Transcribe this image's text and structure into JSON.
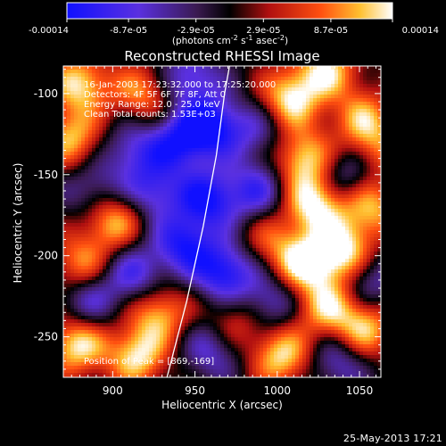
{
  "colorbar": {
    "ticks": [
      "-0.00014",
      "-8.7e-05",
      "-2.9e-05",
      "2.9e-05",
      "8.7e-05",
      "0.00014"
    ],
    "tick_values": [
      -0.00014,
      -8.7e-05,
      -2.9e-05,
      2.9e-05,
      8.7e-05,
      0.00014
    ],
    "range": [
      -0.00014,
      0.00014
    ],
    "unit_label": "(photons cm",
    "unit_sup1": "-2",
    "unit_mid": " s",
    "unit_sup2": "-1",
    "unit_end": " asec",
    "unit_sup3": "-2",
    "unit_close": ")"
  },
  "chart_data": {
    "type": "heatmap",
    "title": "Reconstructed RHESSI Image",
    "xlabel": "Heliocentric X (arcsec)",
    "ylabel": "Heliocentric Y (arcsec)",
    "xlim": [
      870,
      1063
    ],
    "ylim": [
      -275,
      -83
    ],
    "xticks": [
      900,
      950,
      1000,
      1050
    ],
    "yticks": [
      -100,
      -150,
      -200,
      -250
    ],
    "xtick_labels": [
      "900",
      "950",
      "1000",
      "1050"
    ],
    "ytick_labels": [
      "-100",
      "-150",
      "-200",
      "-250"
    ],
    "colormap": "blue-purple-black-red-orange-yellow-white",
    "annotations": [
      "16-Jan-2003 17:23:32.000 to 17:25:20.000",
      "Detectors: 4F 5F 6F 7F 8F, Att 0",
      "Energy Range: 12.0 - 25.0 keV",
      "Clean    Total counts: 1.53E+03"
    ],
    "peak_text": "Position of Peak = [869,-169]",
    "limb_points": [
      [
        933,
        -275
      ],
      [
        945,
        -228
      ],
      [
        955,
        -182
      ],
      [
        963,
        -138
      ],
      [
        968,
        -100
      ],
      [
        971,
        -83
      ]
    ],
    "features": [
      {
        "x": 880,
        "y": -94,
        "v": 0.8
      },
      {
        "x": 918,
        "y": -100,
        "v": 0.6
      },
      {
        "x": 947,
        "y": -90,
        "v": -0.6
      },
      {
        "x": 1008,
        "y": -103,
        "v": 0.85
      },
      {
        "x": 1030,
        "y": -85,
        "v": 0.75
      },
      {
        "x": 960,
        "y": -120,
        "v": -0.85
      },
      {
        "x": 940,
        "y": -130,
        "v": -0.7
      },
      {
        "x": 912,
        "y": -135,
        "v": -0.5
      },
      {
        "x": 988,
        "y": -123,
        "v": -0.4
      },
      {
        "x": 1052,
        "y": -115,
        "v": 0.6
      },
      {
        "x": 875,
        "y": -128,
        "v": 0.7
      },
      {
        "x": 1016,
        "y": -140,
        "v": 0.8
      },
      {
        "x": 1043,
        "y": -150,
        "v": -0.55
      },
      {
        "x": 988,
        "y": -160,
        "v": -0.6
      },
      {
        "x": 958,
        "y": -165,
        "v": -0.8
      },
      {
        "x": 925,
        "y": -160,
        "v": -0.6
      },
      {
        "x": 888,
        "y": -160,
        "v": -0.45
      },
      {
        "x": 1023,
        "y": -168,
        "v": 0.9
      },
      {
        "x": 1057,
        "y": -170,
        "v": 0.7
      },
      {
        "x": 900,
        "y": -178,
        "v": 0.75
      },
      {
        "x": 943,
        "y": -193,
        "v": -0.75
      },
      {
        "x": 968,
        "y": -210,
        "v": -0.85
      },
      {
        "x": 995,
        "y": -190,
        "v": 0.4
      },
      {
        "x": 1016,
        "y": -205,
        "v": 0.85
      },
      {
        "x": 1040,
        "y": -198,
        "v": 0.9
      },
      {
        "x": 1056,
        "y": -215,
        "v": -0.5
      },
      {
        "x": 880,
        "y": -205,
        "v": 0.6
      },
      {
        "x": 913,
        "y": -212,
        "v": -0.6
      },
      {
        "x": 885,
        "y": -228,
        "v": -0.5
      },
      {
        "x": 928,
        "y": -235,
        "v": 0.7
      },
      {
        "x": 995,
        "y": -228,
        "v": -0.55
      },
      {
        "x": 1030,
        "y": -232,
        "v": 0.7
      },
      {
        "x": 1053,
        "y": -245,
        "v": 0.75
      },
      {
        "x": 960,
        "y": -258,
        "v": -0.5
      },
      {
        "x": 915,
        "y": -262,
        "v": 0.8
      },
      {
        "x": 1003,
        "y": -262,
        "v": 0.8
      },
      {
        "x": 1037,
        "y": -265,
        "v": -0.5
      },
      {
        "x": 878,
        "y": -255,
        "v": 0.85
      },
      {
        "x": 975,
        "y": -240,
        "v": 0.45
      },
      {
        "x": 1060,
        "y": -135,
        "v": 0.5
      }
    ]
  },
  "footer": {
    "timestamp": "25-May-2013 17:21"
  }
}
